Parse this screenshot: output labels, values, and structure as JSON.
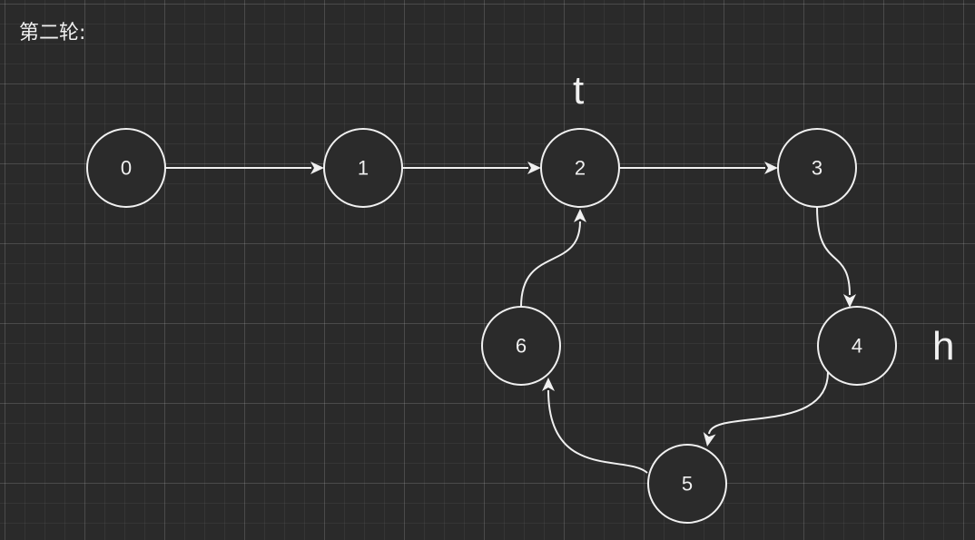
{
  "title": "第二轮:",
  "pointers": {
    "t": "t",
    "h": "h"
  },
  "nodes": [
    {
      "id": "0",
      "label": "0"
    },
    {
      "id": "1",
      "label": "1"
    },
    {
      "id": "2",
      "label": "2"
    },
    {
      "id": "3",
      "label": "3"
    },
    {
      "id": "4",
      "label": "4"
    },
    {
      "id": "5",
      "label": "5"
    },
    {
      "id": "6",
      "label": "6"
    }
  ],
  "edges": [
    {
      "from": "0",
      "to": "1"
    },
    {
      "from": "1",
      "to": "2"
    },
    {
      "from": "2",
      "to": "3"
    },
    {
      "from": "3",
      "to": "4"
    },
    {
      "from": "4",
      "to": "5"
    },
    {
      "from": "5",
      "to": "6"
    },
    {
      "from": "6",
      "to": "2"
    }
  ],
  "colors": {
    "background": "#2a2a2a",
    "stroke": "#f0f0f0",
    "node_fill": "#2b2b2b"
  }
}
